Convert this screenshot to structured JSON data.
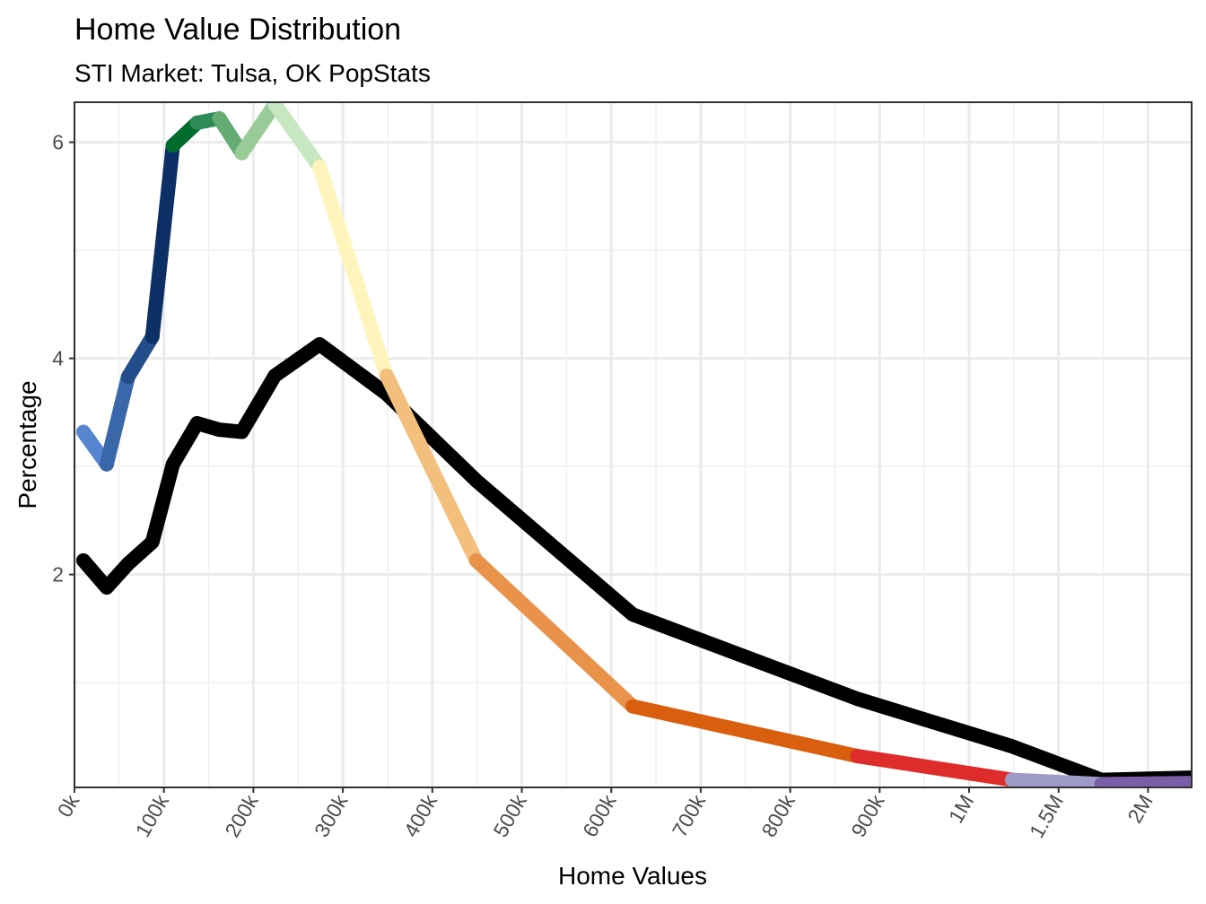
{
  "chart_data": {
    "type": "line",
    "title": "Home Value Distribution",
    "subtitle": "STI Market: Tulsa, OK PopStats",
    "xlabel": "Home Values",
    "ylabel": "Percentage",
    "x_tick_labels": [
      "0k",
      "100k",
      "200k",
      "300k",
      "400k",
      "500k",
      "600k",
      "700k",
      "800k",
      "900k",
      "1M",
      "1.5M",
      "2M"
    ],
    "x_tick_values": [
      0,
      100000,
      200000,
      300000,
      400000,
      500000,
      600000,
      700000,
      800000,
      900000,
      1000000,
      1500000,
      2000000
    ],
    "y_tick_labels": [
      "2",
      "4",
      "6"
    ],
    "y_tick_values": [
      2,
      4,
      6
    ],
    "ylim": [
      0.03,
      6.37
    ],
    "xlim": [
      0,
      2250000
    ],
    "grid": true,
    "x": [
      10000,
      36000,
      60000,
      87000,
      110000,
      137000,
      162000,
      187000,
      224000,
      274000,
      349000,
      449000,
      624000,
      875000,
      1240000,
      1740000,
      2245000
    ],
    "series": [
      {
        "values": [
          3.32,
          3.02,
          3.83,
          4.2,
          5.97,
          6.18,
          6.22,
          5.9,
          6.35,
          5.77,
          3.84,
          2.13,
          0.78,
          0.32,
          0.1,
          0.06,
          0.07
        ],
        "segment_colors": [
          "#5586cf",
          "#3a67a9",
          "#234d8a",
          "#0c2f66",
          "#006d2c",
          "#2e8b57",
          "#64ab74",
          "#98cb98",
          "#c6e7c0",
          "#fff5bc",
          "#f2c07c",
          "#e8924a",
          "#d95f0e",
          "#de2c2a",
          "#9e9ac8",
          "#7a5fa8",
          "#54278f"
        ]
      },
      {
        "values": [
          2.13,
          1.88,
          2.1,
          2.3,
          3.02,
          3.4,
          3.34,
          3.32,
          3.84,
          4.13,
          3.67,
          2.87,
          1.63,
          0.85,
          0.41,
          0.1,
          0.12
        ],
        "color": "#000000"
      }
    ]
  }
}
